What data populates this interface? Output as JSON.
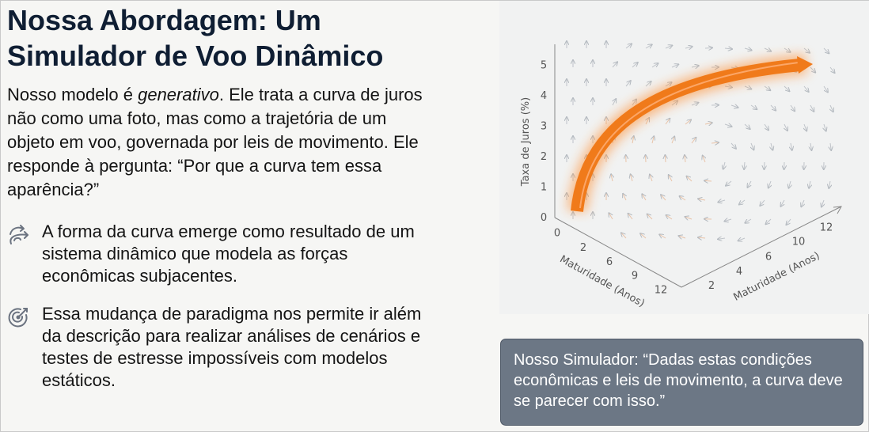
{
  "title_line1": "Nossa Abordagem: Um",
  "title_line2": "Simulador de Voo Dinâmico",
  "intro": {
    "before": "Nosso modelo é ",
    "emphasis": "generativo",
    "after": ". Ele trata a curva de juros não como uma foto, mas como a trajetória de um objeto em voo, governada por leis de movimento. Ele responde à pergunta: “Por que a curva tem essa aparência?”"
  },
  "bullets": [
    {
      "icon": "curved-arrows-icon",
      "text": "A forma da curva emerge como resultado de um sistema dinâmico que modela as forças econômicas subjacentes."
    },
    {
      "icon": "target-arrow-icon",
      "text": "Essa mudança de paradigma nos permite ir além da descrição para realizar análises de cenários e testes de estresse impossíveis com modelos estáticos."
    }
  ],
  "figure": {
    "y_axis_label": "Taxa de Juros (%)",
    "y_ticks": [
      "0",
      "1",
      "2",
      "3",
      "4",
      "5"
    ],
    "left_axis_label": "Maturidade (Anos)",
    "left_ticks": [
      "0",
      "2",
      "6",
      "9",
      "12"
    ],
    "right_axis_label": "Maturidade (Anos)",
    "right_ticks": [
      "2",
      "4",
      "6",
      "10",
      "12"
    ],
    "curve_color": "#f07a1a"
  },
  "callout": "Nosso Simulador: “Dadas estas condições econômicas e leis de movimento, a curva deve se parecer com isso.”",
  "colors": {
    "title": "#0f1e33",
    "callout_bg": "#6c7785",
    "accent": "#f07a1a"
  }
}
